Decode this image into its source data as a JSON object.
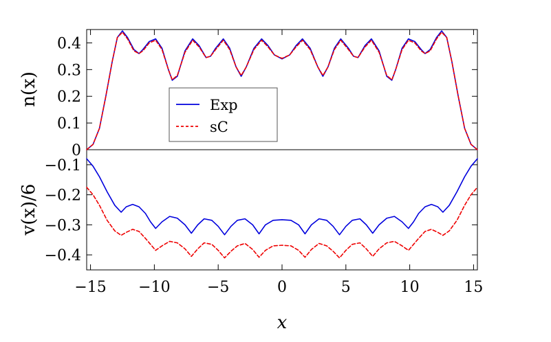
{
  "chart_data": [
    {
      "panel": "top",
      "type": "line",
      "ylabel": "n(x)",
      "xlim": [
        -15.3,
        15.3
      ],
      "ylim": [
        0,
        0.45
      ],
      "yticks": [
        0,
        0.1,
        0.2,
        0.3,
        0.4
      ],
      "ytick_labels": [
        "0",
        "0.1",
        "0.2",
        "0.3",
        "0.4"
      ],
      "legend": {
        "placement": "center-left",
        "entries": [
          "Exp",
          "sC"
        ]
      },
      "series": [
        {
          "name": "Exp",
          "color": "#0000dd",
          "style": "solid",
          "points": [
            [
              -15.3,
              0
            ],
            [
              -14.8,
              0.02
            ],
            [
              -14.3,
              0.08
            ],
            [
              -13.8,
              0.2
            ],
            [
              -13.3,
              0.33
            ],
            [
              -12.9,
              0.42
            ],
            [
              -12.5,
              0.445
            ],
            [
              -12.1,
              0.42
            ],
            [
              -11.6,
              0.375
            ],
            [
              -11.2,
              0.36
            ],
            [
              -10.9,
              0.375
            ],
            [
              -10.4,
              0.405
            ],
            [
              -9.9,
              0.415
            ],
            [
              -9.4,
              0.38
            ],
            [
              -8.9,
              0.3
            ],
            [
              -8.6,
              0.26
            ],
            [
              -8.2,
              0.275
            ],
            [
              -7.6,
              0.37
            ],
            [
              -7.0,
              0.415
            ],
            [
              -6.5,
              0.39
            ],
            [
              -5.95,
              0.345
            ],
            [
              -5.6,
              0.35
            ],
            [
              -5.2,
              0.38
            ],
            [
              -4.6,
              0.415
            ],
            [
              -4.1,
              0.38
            ],
            [
              -3.6,
              0.31
            ],
            [
              -3.2,
              0.275
            ],
            [
              -2.8,
              0.31
            ],
            [
              -2.2,
              0.38
            ],
            [
              -1.6,
              0.415
            ],
            [
              -1.1,
              0.39
            ],
            [
              -0.6,
              0.355
            ],
            [
              0,
              0.34
            ],
            [
              0.6,
              0.355
            ],
            [
              1.1,
              0.39
            ],
            [
              1.6,
              0.415
            ],
            [
              2.2,
              0.38
            ],
            [
              2.8,
              0.31
            ],
            [
              3.2,
              0.275
            ],
            [
              3.6,
              0.31
            ],
            [
              4.1,
              0.38
            ],
            [
              4.6,
              0.415
            ],
            [
              5.2,
              0.38
            ],
            [
              5.6,
              0.35
            ],
            [
              5.95,
              0.345
            ],
            [
              6.5,
              0.39
            ],
            [
              7.0,
              0.415
            ],
            [
              7.6,
              0.37
            ],
            [
              8.2,
              0.275
            ],
            [
              8.6,
              0.26
            ],
            [
              8.9,
              0.3
            ],
            [
              9.4,
              0.38
            ],
            [
              9.9,
              0.415
            ],
            [
              10.4,
              0.405
            ],
            [
              10.9,
              0.375
            ],
            [
              11.2,
              0.36
            ],
            [
              11.6,
              0.375
            ],
            [
              12.1,
              0.42
            ],
            [
              12.5,
              0.445
            ],
            [
              12.9,
              0.42
            ],
            [
              13.3,
              0.33
            ],
            [
              13.8,
              0.2
            ],
            [
              14.3,
              0.08
            ],
            [
              14.8,
              0.02
            ],
            [
              15.3,
              0
            ]
          ]
        },
        {
          "name": "sC",
          "color": "#ee0000",
          "style": "dashed",
          "points": [
            [
              -15.3,
              0
            ],
            [
              -14.8,
              0.02
            ],
            [
              -14.3,
              0.08
            ],
            [
              -13.8,
              0.2
            ],
            [
              -13.3,
              0.33
            ],
            [
              -12.9,
              0.42
            ],
            [
              -12.5,
              0.44
            ],
            [
              -12.1,
              0.415
            ],
            [
              -11.6,
              0.37
            ],
            [
              -11.2,
              0.36
            ],
            [
              -10.9,
              0.37
            ],
            [
              -10.4,
              0.4
            ],
            [
              -9.9,
              0.41
            ],
            [
              -9.4,
              0.375
            ],
            [
              -8.9,
              0.3
            ],
            [
              -8.6,
              0.262
            ],
            [
              -8.2,
              0.278
            ],
            [
              -7.6,
              0.365
            ],
            [
              -7.0,
              0.41
            ],
            [
              -6.5,
              0.385
            ],
            [
              -5.95,
              0.345
            ],
            [
              -5.6,
              0.35
            ],
            [
              -5.2,
              0.375
            ],
            [
              -4.6,
              0.41
            ],
            [
              -4.1,
              0.375
            ],
            [
              -3.6,
              0.31
            ],
            [
              -3.2,
              0.278
            ],
            [
              -2.8,
              0.31
            ],
            [
              -2.2,
              0.375
            ],
            [
              -1.6,
              0.41
            ],
            [
              -1.1,
              0.385
            ],
            [
              -0.6,
              0.355
            ],
            [
              0,
              0.342
            ],
            [
              0.6,
              0.355
            ],
            [
              1.1,
              0.385
            ],
            [
              1.6,
              0.41
            ],
            [
              2.2,
              0.375
            ],
            [
              2.8,
              0.31
            ],
            [
              3.2,
              0.278
            ],
            [
              3.6,
              0.31
            ],
            [
              4.1,
              0.375
            ],
            [
              4.6,
              0.41
            ],
            [
              5.2,
              0.375
            ],
            [
              5.6,
              0.35
            ],
            [
              5.95,
              0.345
            ],
            [
              6.5,
              0.385
            ],
            [
              7.0,
              0.41
            ],
            [
              7.6,
              0.365
            ],
            [
              8.2,
              0.278
            ],
            [
              8.6,
              0.262
            ],
            [
              8.9,
              0.3
            ],
            [
              9.4,
              0.375
            ],
            [
              9.9,
              0.41
            ],
            [
              10.4,
              0.4
            ],
            [
              10.9,
              0.37
            ],
            [
              11.2,
              0.36
            ],
            [
              11.6,
              0.37
            ],
            [
              12.1,
              0.415
            ],
            [
              12.5,
              0.44
            ],
            [
              12.9,
              0.42
            ],
            [
              13.3,
              0.33
            ],
            [
              13.8,
              0.2
            ],
            [
              14.3,
              0.08
            ],
            [
              14.8,
              0.02
            ],
            [
              15.3,
              0
            ]
          ]
        }
      ]
    },
    {
      "panel": "bottom",
      "type": "line",
      "xlabel": "x",
      "ylabel": "v(x)/6",
      "xlim": [
        -15.3,
        15.3
      ],
      "ylim": [
        -0.45,
        -0.05
      ],
      "xticks": [
        -15,
        -10,
        -5,
        0,
        5,
        10,
        15
      ],
      "xtick_labels": [
        "−15",
        "−10",
        "−5",
        "0",
        "5",
        "10",
        "15"
      ],
      "yticks": [
        -0.1,
        -0.2,
        -0.3,
        -0.4
      ],
      "ytick_labels": [
        "−0.1",
        "−0.2",
        "−0.3",
        "−0.4"
      ],
      "series": [
        {
          "name": "Exp",
          "color": "#0000dd",
          "style": "solid",
          "points": [
            [
              -15.3,
              -0.08
            ],
            [
              -14.8,
              -0.105
            ],
            [
              -14.3,
              -0.14
            ],
            [
              -13.7,
              -0.19
            ],
            [
              -13.1,
              -0.235
            ],
            [
              -12.6,
              -0.258
            ],
            [
              -12.2,
              -0.24
            ],
            [
              -11.7,
              -0.232
            ],
            [
              -11.2,
              -0.24
            ],
            [
              -10.7,
              -0.262
            ],
            [
              -10.3,
              -0.29
            ],
            [
              -9.9,
              -0.312
            ],
            [
              -9.4,
              -0.29
            ],
            [
              -8.8,
              -0.272
            ],
            [
              -8.2,
              -0.278
            ],
            [
              -7.6,
              -0.3
            ],
            [
              -7.1,
              -0.328
            ],
            [
              -6.6,
              -0.3
            ],
            [
              -6.1,
              -0.28
            ],
            [
              -5.5,
              -0.285
            ],
            [
              -5.0,
              -0.305
            ],
            [
              -4.5,
              -0.333
            ],
            [
              -4.0,
              -0.305
            ],
            [
              -3.5,
              -0.285
            ],
            [
              -2.9,
              -0.28
            ],
            [
              -2.3,
              -0.3
            ],
            [
              -1.8,
              -0.33
            ],
            [
              -1.3,
              -0.3
            ],
            [
              -0.7,
              -0.285
            ],
            [
              0,
              -0.283
            ],
            [
              0.7,
              -0.285
            ],
            [
              1.3,
              -0.3
            ],
            [
              1.8,
              -0.33
            ],
            [
              2.3,
              -0.3
            ],
            [
              2.9,
              -0.28
            ],
            [
              3.5,
              -0.285
            ],
            [
              4.0,
              -0.305
            ],
            [
              4.5,
              -0.333
            ],
            [
              5.0,
              -0.305
            ],
            [
              5.5,
              -0.285
            ],
            [
              6.1,
              -0.28
            ],
            [
              6.6,
              -0.3
            ],
            [
              7.1,
              -0.328
            ],
            [
              7.6,
              -0.3
            ],
            [
              8.2,
              -0.278
            ],
            [
              8.8,
              -0.272
            ],
            [
              9.4,
              -0.29
            ],
            [
              9.9,
              -0.312
            ],
            [
              10.3,
              -0.29
            ],
            [
              10.7,
              -0.262
            ],
            [
              11.2,
              -0.24
            ],
            [
              11.7,
              -0.232
            ],
            [
              12.2,
              -0.24
            ],
            [
              12.6,
              -0.258
            ],
            [
              13.1,
              -0.235
            ],
            [
              13.7,
              -0.19
            ],
            [
              14.3,
              -0.14
            ],
            [
              14.8,
              -0.105
            ],
            [
              15.3,
              -0.08
            ]
          ]
        },
        {
          "name": "sC",
          "color": "#ee0000",
          "style": "dashed",
          "points": [
            [
              -15.3,
              -0.175
            ],
            [
              -14.8,
              -0.2
            ],
            [
              -14.3,
              -0.235
            ],
            [
              -13.7,
              -0.285
            ],
            [
              -13.1,
              -0.32
            ],
            [
              -12.6,
              -0.335
            ],
            [
              -12.2,
              -0.325
            ],
            [
              -11.7,
              -0.315
            ],
            [
              -11.2,
              -0.322
            ],
            [
              -10.7,
              -0.345
            ],
            [
              -10.3,
              -0.365
            ],
            [
              -9.9,
              -0.385
            ],
            [
              -9.4,
              -0.37
            ],
            [
              -8.8,
              -0.355
            ],
            [
              -8.2,
              -0.36
            ],
            [
              -7.6,
              -0.38
            ],
            [
              -7.1,
              -0.405
            ],
            [
              -6.6,
              -0.38
            ],
            [
              -6.1,
              -0.36
            ],
            [
              -5.5,
              -0.365
            ],
            [
              -5.0,
              -0.385
            ],
            [
              -4.5,
              -0.41
            ],
            [
              -4.0,
              -0.388
            ],
            [
              -3.5,
              -0.37
            ],
            [
              -2.9,
              -0.362
            ],
            [
              -2.3,
              -0.382
            ],
            [
              -1.8,
              -0.408
            ],
            [
              -1.3,
              -0.385
            ],
            [
              -0.7,
              -0.37
            ],
            [
              0,
              -0.368
            ],
            [
              0.7,
              -0.37
            ],
            [
              1.3,
              -0.385
            ],
            [
              1.8,
              -0.408
            ],
            [
              2.3,
              -0.382
            ],
            [
              2.9,
              -0.362
            ],
            [
              3.5,
              -0.37
            ],
            [
              4.0,
              -0.388
            ],
            [
              4.5,
              -0.41
            ],
            [
              5.0,
              -0.385
            ],
            [
              5.5,
              -0.365
            ],
            [
              6.1,
              -0.36
            ],
            [
              6.6,
              -0.38
            ],
            [
              7.1,
              -0.405
            ],
            [
              7.6,
              -0.38
            ],
            [
              8.2,
              -0.36
            ],
            [
              8.8,
              -0.355
            ],
            [
              9.4,
              -0.37
            ],
            [
              9.9,
              -0.385
            ],
            [
              10.3,
              -0.365
            ],
            [
              10.7,
              -0.345
            ],
            [
              11.2,
              -0.322
            ],
            [
              11.7,
              -0.315
            ],
            [
              12.2,
              -0.325
            ],
            [
              12.6,
              -0.335
            ],
            [
              13.1,
              -0.32
            ],
            [
              13.7,
              -0.285
            ],
            [
              14.3,
              -0.235
            ],
            [
              14.8,
              -0.2
            ],
            [
              15.3,
              -0.175
            ]
          ]
        }
      ]
    }
  ]
}
